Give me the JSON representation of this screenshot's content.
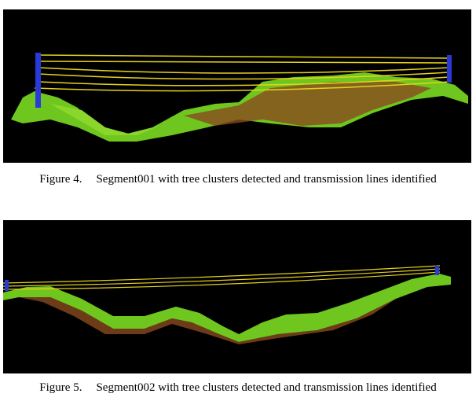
{
  "figures": [
    {
      "label": "Figure 4.",
      "caption": "Segment001 with tree clusters detected and transmission lines identified"
    },
    {
      "label": "Figure 5.",
      "caption": "Segment002 with tree clusters detected and transmission lines identified"
    }
  ]
}
